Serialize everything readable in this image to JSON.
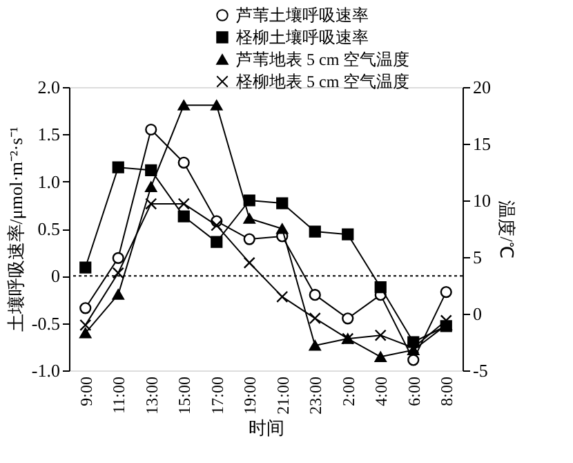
{
  "chart_data": {
    "type": "line",
    "xlabel": "时间",
    "ylabel": "土壤呼吸速率/μmol·m⁻²·s⁻¹",
    "y2label": "温度/℃",
    "categories": [
      "9:00",
      "11:00",
      "13:00",
      "15:00",
      "17:00",
      "19:00",
      "21:00",
      "23:00",
      "2:00",
      "4:00",
      "6:00",
      "8:00"
    ],
    "series": [
      {
        "name": "芦苇土壤呼吸速率",
        "color": "#000000",
        "marker": "circle",
        "values": [
          -0.34,
          0.19,
          1.55,
          1.2,
          0.58,
          0.39,
          0.42,
          -0.2,
          -0.45,
          -0.2,
          -0.89,
          -0.17
        ]
      },
      {
        "name": "柽柳土壤呼吸速率",
        "color": "#000000",
        "marker": "square",
        "values": [
          0.09,
          1.15,
          1.12,
          0.63,
          0.36,
          0.8,
          0.77,
          0.47,
          0.44,
          -0.12,
          -0.7,
          -0.53
        ]
      },
      {
        "name": "芦苇地表 5 cm 空气温度",
        "color": "#000000",
        "marker": "triangle",
        "axis": "y2",
        "values": [
          -1.7,
          1.7,
          11.2,
          18.4,
          18.4,
          8.4,
          7.5,
          -2.8,
          -2.2,
          -3.8,
          -3.2,
          -1.0
        ]
      },
      {
        "name": "柽柳地表 5 cm 空气温度",
        "color": "#000000",
        "marker": "cross",
        "axis": "y2",
        "values": [
          -1.0,
          3.6,
          9.7,
          9.7,
          7.8,
          4.5,
          1.5,
          -0.4,
          -2.2,
          -1.9,
          -3.0,
          -0.6
        ]
      }
    ],
    "ylim": [
      -1,
      2
    ],
    "yticks": [
      {
        "value": -1,
        "label": "-1.0"
      },
      {
        "value": -0.5,
        "label": "-0.5"
      },
      0,
      {
        "value": 0.5,
        "label": "0.5"
      },
      {
        "value": 1,
        "label": "1.0"
      },
      {
        "value": 1.5,
        "label": "1.5"
      },
      {
        "value": 2,
        "label": "2.0"
      }
    ],
    "y2lim": [
      -5,
      20
    ],
    "y2ticks": [
      -5,
      0,
      5,
      10,
      15,
      20
    ],
    "ref_lines": [
      {
        "axis": "y",
        "value": 0,
        "line_style": "dotted"
      }
    ],
    "grid": false,
    "legend": "top right",
    "line_style": "solid"
  }
}
